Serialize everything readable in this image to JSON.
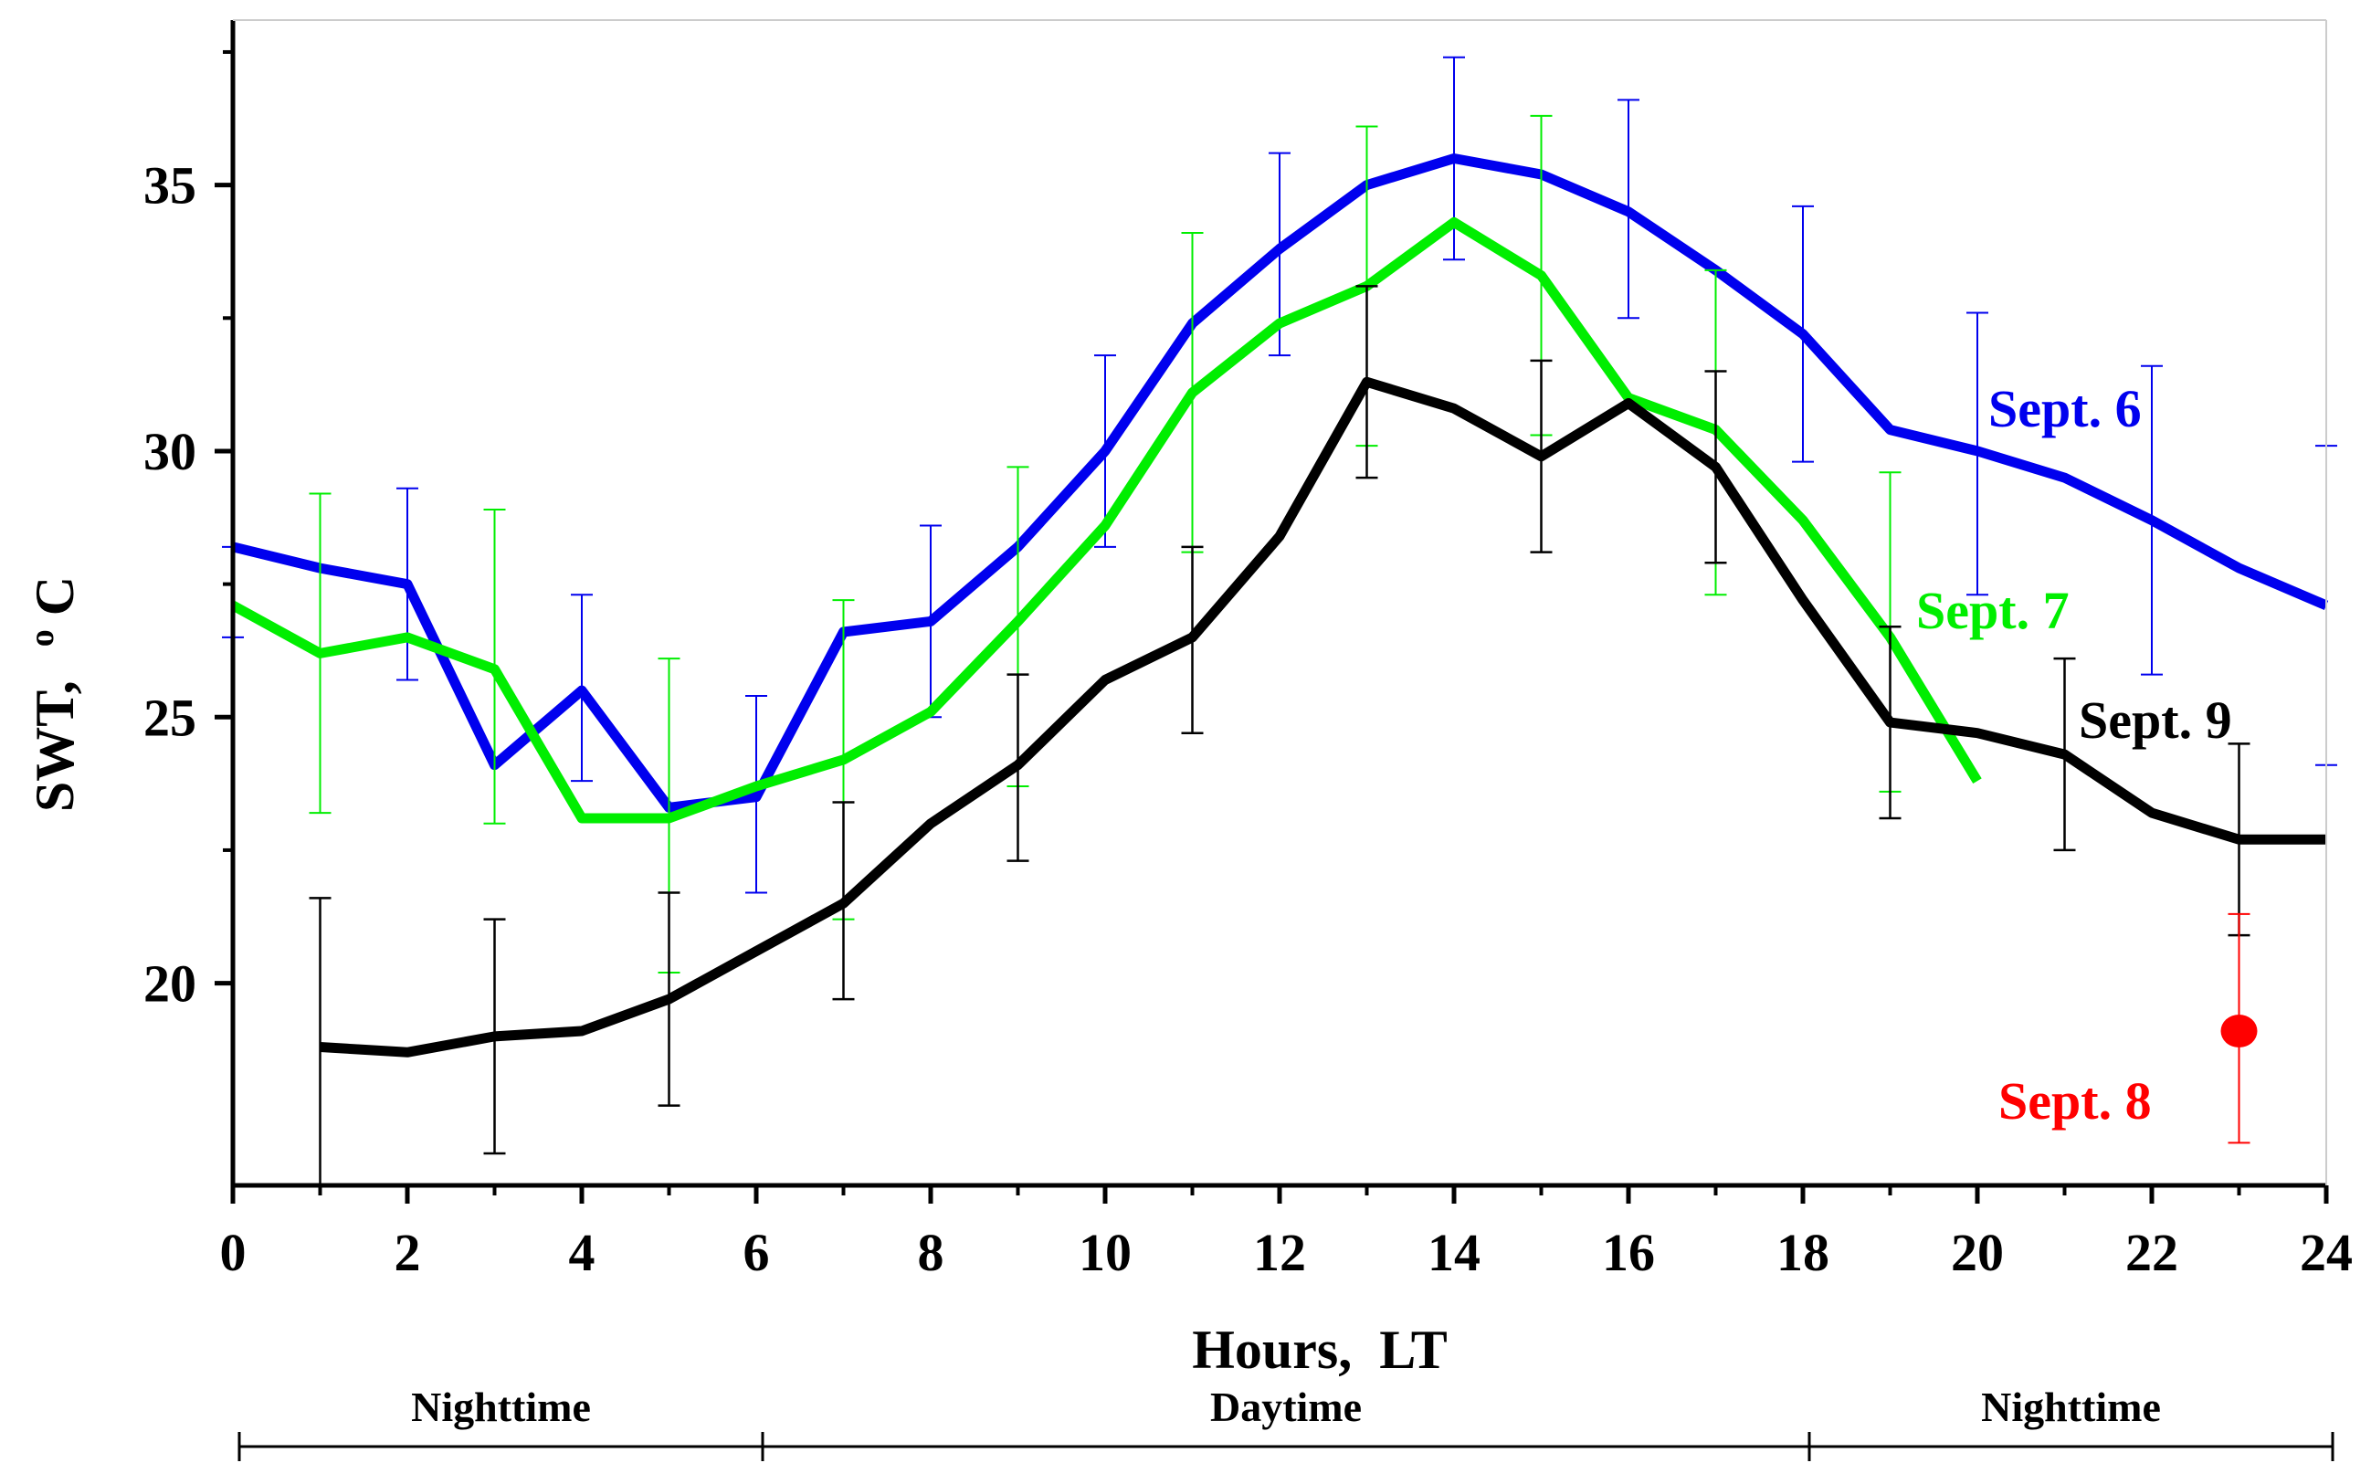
{
  "chart_data": {
    "type": "line",
    "title": "",
    "xlabel": "Hours,  LT",
    "ylabel": "SWT,",
    "ylabel_unit": "°C",
    "xlim": [
      0,
      24
    ],
    "ylim": [
      16.2,
      38.1
    ],
    "x_ticks": [
      0,
      2,
      4,
      6,
      8,
      10,
      12,
      14,
      16,
      18,
      20,
      22,
      24
    ],
    "x_tick_labels": [
      "0",
      "2",
      "4",
      "6",
      "8",
      "10",
      "12",
      "14",
      "16",
      "18",
      "20",
      "22",
      "24"
    ],
    "y_ticks": [
      20,
      25,
      30,
      35
    ],
    "y_tick_labels": [
      "20",
      "25",
      "30",
      "35"
    ],
    "grid": false,
    "series": [
      {
        "name": "Sept. 6",
        "label": "Sept. 6",
        "color": "#0000ee",
        "x": [
          0,
          1,
          2,
          3,
          4,
          5,
          6,
          7,
          8,
          9,
          10,
          11,
          12,
          13,
          14,
          15,
          16,
          17,
          18,
          19,
          20,
          21,
          22,
          23,
          24
        ],
        "y": [
          28.2,
          27.8,
          27.5,
          24.1,
          25.5,
          23.3,
          23.5,
          26.6,
          26.8,
          28.2,
          30.0,
          32.4,
          33.8,
          35.0,
          35.5,
          35.2,
          34.5,
          33.4,
          32.2,
          30.4,
          30.0,
          29.5,
          28.7,
          27.8,
          27.1
        ],
        "err_x": [
          0,
          2,
          4,
          6,
          8,
          10,
          12,
          14,
          16,
          18,
          20,
          22,
          24
        ],
        "err_low": [
          26.5,
          25.7,
          23.8,
          21.7,
          25.0,
          28.2,
          31.8,
          33.6,
          32.5,
          29.8,
          27.3,
          25.8,
          24.1
        ],
        "err_high": [
          28.2,
          29.3,
          27.3,
          25.4,
          28.6,
          31.8,
          35.6,
          37.4,
          36.6,
          34.6,
          32.6,
          31.6,
          30.1
        ]
      },
      {
        "name": "Sept. 7",
        "label": "Sept.  7",
        "color": "#00ee00",
        "x": [
          0,
          1,
          2,
          3,
          4,
          5,
          6,
          7,
          8,
          9,
          10,
          11,
          12,
          13,
          14,
          15,
          16,
          17,
          18,
          19,
          20
        ],
        "y": [
          27.1,
          26.2,
          26.5,
          25.9,
          23.1,
          23.1,
          23.7,
          24.2,
          25.1,
          26.8,
          28.6,
          31.1,
          32.4,
          33.1,
          34.3,
          33.3,
          31.0,
          30.4,
          28.7,
          26.5,
          23.8
        ],
        "err_x": [
          1,
          3,
          5,
          7,
          9,
          11,
          13,
          15,
          17,
          19
        ],
        "err_low": [
          23.2,
          23.0,
          20.2,
          21.2,
          23.7,
          28.1,
          30.1,
          30.3,
          27.3,
          23.6
        ],
        "err_high": [
          29.2,
          28.9,
          26.1,
          27.2,
          29.7,
          34.1,
          36.1,
          36.3,
          33.4,
          29.6
        ]
      },
      {
        "name": "Sept. 9",
        "label": "Sept.  9",
        "color": "#000000",
        "x": [
          1,
          2,
          3,
          4,
          5,
          6,
          7,
          8,
          9,
          10,
          11,
          12,
          13,
          14,
          15,
          16,
          17,
          18,
          19,
          20,
          21,
          22,
          23,
          24
        ],
        "y": [
          18.8,
          18.7,
          19.0,
          19.1,
          19.7,
          20.6,
          21.5,
          23.0,
          24.1,
          25.7,
          26.5,
          28.4,
          31.3,
          30.8,
          29.9,
          30.9,
          29.7,
          27.2,
          24.9,
          24.7,
          24.3,
          23.2,
          22.7,
          22.7
        ],
        "err_x": [
          1,
          3,
          5,
          7,
          9,
          11,
          13,
          15,
          17,
          19,
          21,
          23
        ],
        "err_low": [
          16.2,
          16.8,
          17.7,
          19.7,
          22.3,
          24.7,
          29.5,
          28.1,
          27.9,
          23.1,
          22.5,
          20.9
        ],
        "err_high": [
          21.6,
          21.2,
          21.7,
          23.4,
          25.8,
          28.2,
          33.1,
          31.7,
          31.5,
          26.7,
          26.1,
          24.5
        ]
      },
      {
        "name": "Sept. 8",
        "label": "Sept.  8",
        "color": "#ff0000",
        "x": [
          23
        ],
        "y": [
          19.1
        ],
        "err_x": [
          23
        ],
        "err_low": [
          17.0
        ],
        "err_high": [
          21.3
        ]
      }
    ],
    "periods": [
      {
        "label": "Nighttime",
        "start": 0,
        "end": 6
      },
      {
        "label": "Daytime",
        "start": 6,
        "end": 18
      },
      {
        "label": "Nighttime",
        "start": 18,
        "end": 24
      }
    ]
  }
}
